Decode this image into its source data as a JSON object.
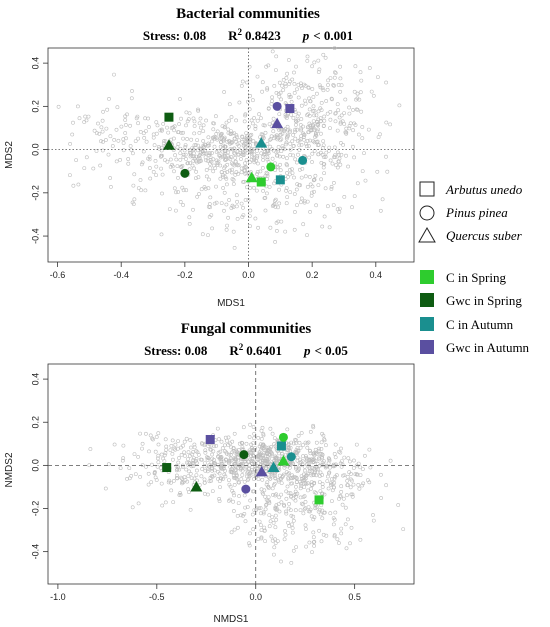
{
  "colors": {
    "c_spring": "#2ecc2e",
    "gwc_spring": "#0e5c12",
    "c_autumn": "#1a8f8f",
    "gwc_autumn": "#5a4fa0",
    "bg_points": "#bdbdbd"
  },
  "legend": {
    "species": [
      {
        "label": "Arbutus unedo",
        "shape": "square"
      },
      {
        "label": "Pinus pinea",
        "shape": "circle"
      },
      {
        "label": "Quercus suber",
        "shape": "triangle"
      }
    ],
    "groups": [
      {
        "label": "C in Spring",
        "color_key": "c_spring"
      },
      {
        "label": "Gwc in Spring",
        "color_key": "gwc_spring"
      },
      {
        "label": "C in Autumn",
        "color_key": "c_autumn"
      },
      {
        "label": "Gwc in Autumn",
        "color_key": "gwc_autumn"
      }
    ]
  },
  "chart_data": [
    {
      "type": "scatter",
      "title": "Bacterial communities",
      "stress": "Stress: 0.08",
      "r2_label": "R",
      "r2_sup": "2",
      "r2_value": "0.8423",
      "p_label": "p",
      "p_value": "< 0.001",
      "xlabel": "MDS1",
      "ylabel": "MDS2",
      "xlim": [
        -0.63,
        0.52
      ],
      "ylim": [
        -0.52,
        0.47
      ],
      "xticks": [
        -0.6,
        -0.4,
        -0.2,
        0.0,
        0.2,
        0.4
      ],
      "xtick_labels": [
        "-0.6",
        "-0.4",
        "-0.2",
        "0.0",
        "0.2",
        "0.4"
      ],
      "yticks": [
        -0.4,
        -0.2,
        0.0,
        0.2,
        0.4
      ],
      "ytick_labels": [
        "-0.4",
        "-0.2",
        "0.0",
        "0.2",
        "0.4"
      ],
      "reference_lines": {
        "x": 0,
        "y": 0,
        "style": "dotted"
      },
      "background_cloud": {
        "n": 1100,
        "shape": "open-circle",
        "color_key": "bg_points"
      },
      "points": [
        {
          "group": "gwc_spring",
          "shape": "square",
          "x": -0.25,
          "y": 0.15
        },
        {
          "group": "gwc_spring",
          "shape": "triangle",
          "x": -0.25,
          "y": 0.02
        },
        {
          "group": "gwc_spring",
          "shape": "circle",
          "x": -0.2,
          "y": -0.11
        },
        {
          "group": "c_spring",
          "shape": "triangle",
          "x": 0.01,
          "y": -0.13
        },
        {
          "group": "c_spring",
          "shape": "square",
          "x": 0.04,
          "y": -0.15
        },
        {
          "group": "c_spring",
          "shape": "circle",
          "x": 0.07,
          "y": -0.08
        },
        {
          "group": "c_autumn",
          "shape": "triangle",
          "x": 0.04,
          "y": 0.03
        },
        {
          "group": "c_autumn",
          "shape": "square",
          "x": 0.1,
          "y": -0.14
        },
        {
          "group": "c_autumn",
          "shape": "circle",
          "x": 0.17,
          "y": -0.05
        },
        {
          "group": "gwc_autumn",
          "shape": "circle",
          "x": 0.09,
          "y": 0.2
        },
        {
          "group": "gwc_autumn",
          "shape": "triangle",
          "x": 0.09,
          "y": 0.12
        },
        {
          "group": "gwc_autumn",
          "shape": "square",
          "x": 0.13,
          "y": 0.19
        }
      ]
    },
    {
      "type": "scatter",
      "title": "Fungal communities",
      "stress": "Stress: 0.08",
      "r2_label": "R",
      "r2_sup": "2",
      "r2_value": "0.6401",
      "p_label": "p",
      "p_value": "< 0.05",
      "xlabel": "NMDS1",
      "ylabel": "NMDS2",
      "xlim": [
        -1.05,
        0.8
      ],
      "ylim": [
        -0.55,
        0.47
      ],
      "xticks": [
        -1.0,
        -0.5,
        0.0,
        0.5
      ],
      "xtick_labels": [
        "-1.0",
        "-0.5",
        "0.0",
        "0.5"
      ],
      "yticks": [
        -0.4,
        -0.2,
        0.0,
        0.2,
        0.4
      ],
      "ytick_labels": [
        "-0.4",
        "-0.2",
        "0.0",
        "0.2",
        "0.4"
      ],
      "reference_lines": {
        "x": 0,
        "y": 0,
        "style": "dashed"
      },
      "background_cloud": {
        "n": 1100,
        "shape": "open-circle",
        "color_key": "bg_points"
      },
      "points": [
        {
          "group": "gwc_spring",
          "shape": "square",
          "x": -0.45,
          "y": -0.01
        },
        {
          "group": "gwc_spring",
          "shape": "triangle",
          "x": -0.3,
          "y": -0.1
        },
        {
          "group": "gwc_spring",
          "shape": "circle",
          "x": -0.06,
          "y": 0.05
        },
        {
          "group": "gwc_autumn",
          "shape": "square",
          "x": -0.23,
          "y": 0.12
        },
        {
          "group": "gwc_autumn",
          "shape": "circle",
          "x": -0.05,
          "y": -0.11
        },
        {
          "group": "gwc_autumn",
          "shape": "triangle",
          "x": 0.03,
          "y": -0.03
        },
        {
          "group": "c_autumn",
          "shape": "triangle",
          "x": 0.09,
          "y": -0.01
        },
        {
          "group": "c_autumn",
          "shape": "square",
          "x": 0.13,
          "y": 0.09
        },
        {
          "group": "c_autumn",
          "shape": "circle",
          "x": 0.18,
          "y": 0.04
        },
        {
          "group": "c_spring",
          "shape": "circle",
          "x": 0.14,
          "y": 0.13
        },
        {
          "group": "c_spring",
          "shape": "triangle",
          "x": 0.14,
          "y": 0.02
        },
        {
          "group": "c_spring",
          "shape": "square",
          "x": 0.32,
          "y": -0.16
        }
      ]
    }
  ]
}
